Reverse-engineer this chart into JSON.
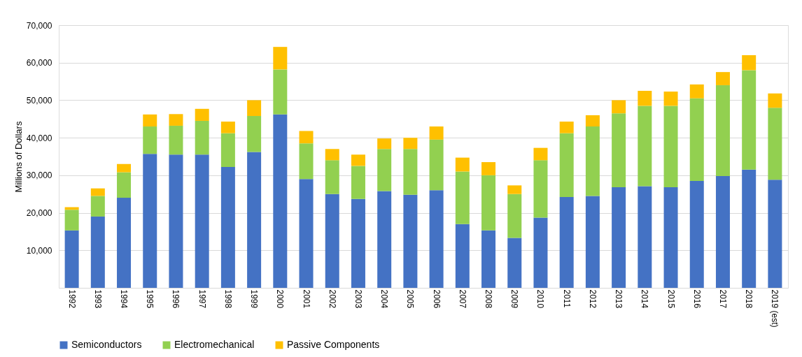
{
  "chart_data": {
    "type": "bar",
    "stacked": true,
    "ylabel": "Millions of Dollars",
    "categories": [
      "1992",
      "1993",
      "1994",
      "1995",
      "1996",
      "1997",
      "1998",
      "1999",
      "2000",
      "2001",
      "2002",
      "2003",
      "2004",
      "2005",
      "2006",
      "2007",
      "2008",
      "2009",
      "2010",
      "2011",
      "2012",
      "2013",
      "2014",
      "2015",
      "2016",
      "2017",
      "2018",
      "2019 (est)"
    ],
    "series": [
      {
        "name": "Semiconductors",
        "color": "#4472c4",
        "values": [
          15300,
          19000,
          24000,
          35700,
          35500,
          35500,
          32200,
          36200,
          46200,
          29000,
          25000,
          23700,
          25800,
          24800,
          26000,
          17000,
          15300,
          13300,
          18700,
          24200,
          24500,
          26800,
          27100,
          26800,
          28500,
          29800,
          31500,
          28800
        ]
      },
      {
        "name": "Electromechanical",
        "color": "#92d050",
        "values": [
          5500,
          5500,
          6800,
          7300,
          7700,
          9000,
          9000,
          9600,
          12000,
          9500,
          9000,
          8800,
          11200,
          12200,
          13500,
          14000,
          14700,
          11700,
          15300,
          17000,
          18500,
          19700,
          21400,
          21700,
          22000,
          24200,
          26500,
          19200
        ]
      },
      {
        "name": "Passive Components",
        "color": "#ffc000",
        "values": [
          700,
          2000,
          2200,
          3200,
          3100,
          3200,
          3100,
          4200,
          6000,
          3300,
          3000,
          3000,
          2800,
          3000,
          3500,
          3700,
          3500,
          2300,
          3300,
          3100,
          3000,
          3500,
          4000,
          3800,
          3700,
          3500,
          4000,
          3800
        ]
      }
    ],
    "ylim": [
      0,
      70000
    ],
    "yticks": [
      {
        "value": 10000,
        "label": "10,000"
      },
      {
        "value": 20000,
        "label": "20,000"
      },
      {
        "value": 30000,
        "label": "30,000"
      },
      {
        "value": 40000,
        "label": "40,000"
      },
      {
        "value": 50000,
        "label": "50,000"
      },
      {
        "value": 60000,
        "label": "60,000"
      },
      {
        "value": 70000,
        "label": "70,000"
      }
    ],
    "grid": "y",
    "legend": "bottom"
  }
}
